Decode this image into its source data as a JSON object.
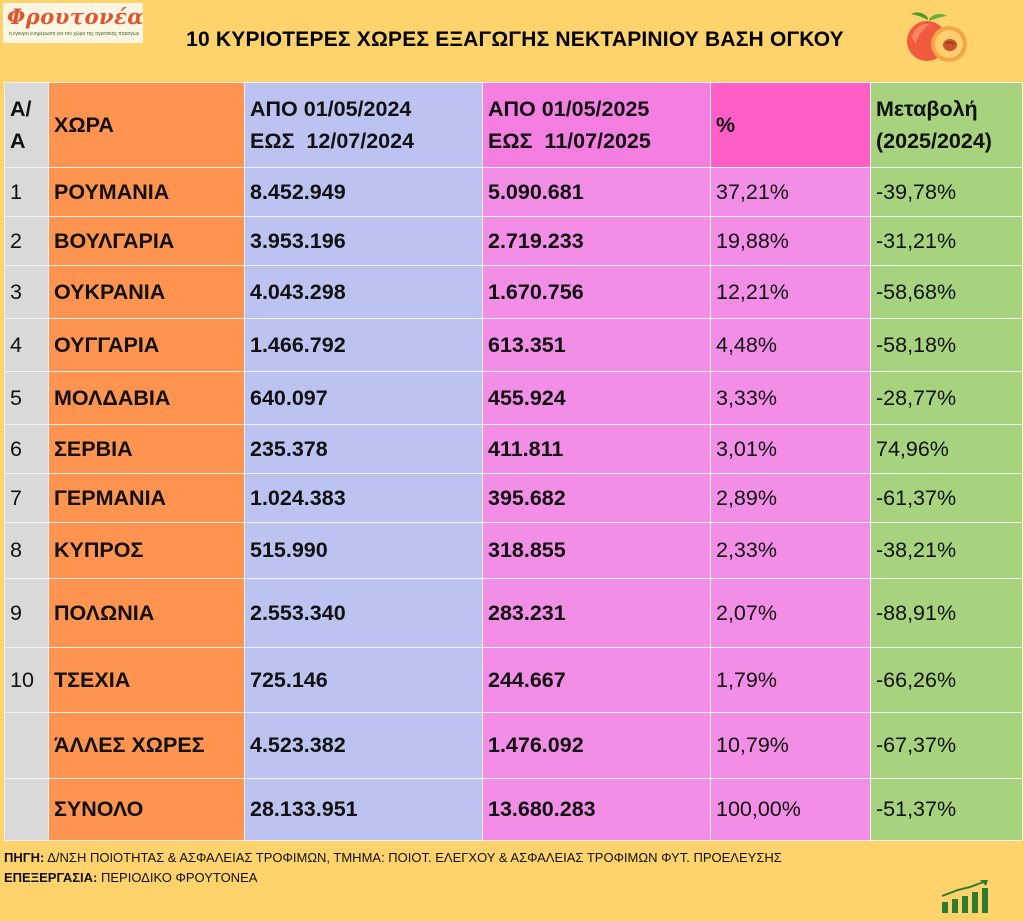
{
  "brand": {
    "logo_text": "Φρουτονέα",
    "logo_tagline": "η έγκυρη ενημέρωση για τον χώρο της αγροτικής παραγωγής"
  },
  "title": "10 ΚΥΡΙΟΤΕΡΕΣ ΧΩΡΕΣ ΕΞΑΓΩΓΗΣ ΝΕΚΤΑΡΙΝΙΟΥ ΒΑΣΗ ΟΓΚΟΥ",
  "table": {
    "headers": {
      "num": [
        "Α/",
        "Α"
      ],
      "country": "ΧΩΡΑ",
      "period_2024": [
        "ΑΠΟ 01/05/2024",
        "ΕΩΣ  12/07/2024"
      ],
      "period_2025": [
        "ΑΠΟ 01/05/2025",
        "ΕΩΣ  11/07/2025"
      ],
      "pct": "%",
      "change": [
        "Μεταβολή",
        "(2025/2024)"
      ]
    },
    "rows": [
      {
        "num": "1",
        "country": "ΡΟΥΜΑΝΙΑ",
        "v2024": "8.452.949",
        "v2025": "5.090.681",
        "pct": "37,21%",
        "change": "-39,78%"
      },
      {
        "num": "2",
        "country": "ΒΟΥΛΓΑΡΙΑ",
        "v2024": "3.953.196",
        "v2025": "2.719.233",
        "pct": "19,88%",
        "change": "-31,21%"
      },
      {
        "num": "3",
        "country": "ΟΥΚΡΑΝΙΑ",
        "v2024": "4.043.298",
        "v2025": "1.670.756",
        "pct": "12,21%",
        "change": "-58,68%"
      },
      {
        "num": "4",
        "country": "ΟΥΓΓΑΡΙΑ",
        "v2024": "1.466.792",
        "v2025": "613.351",
        "pct": "4,48%",
        "change": "-58,18%"
      },
      {
        "num": "5",
        "country": "ΜΟΛΔΑΒΙΑ",
        "v2024": "640.097",
        "v2025": "455.924",
        "pct": "3,33%",
        "change": "-28,77%"
      },
      {
        "num": "6",
        "country": "ΣΕΡΒΙΑ",
        "v2024": "235.378",
        "v2025": "411.811",
        "pct": "3,01%",
        "change": "74,96%"
      },
      {
        "num": "7",
        "country": "ΓΕΡΜΑΝΙΑ",
        "v2024": "1.024.383",
        "v2025": "395.682",
        "pct": "2,89%",
        "change": "-61,37%"
      },
      {
        "num": "8",
        "country": "ΚΥΠΡΟΣ",
        "v2024": "515.990",
        "v2025": "318.855",
        "pct": "2,33%",
        "change": "-38,21%"
      },
      {
        "num": "9",
        "country": "ΠΟΛΩΝΙΑ",
        "v2024": "2.553.340",
        "v2025": "283.231",
        "pct": "2,07%",
        "change": "-88,91%"
      },
      {
        "num": "10",
        "country": "ΤΣΕΧΙΑ",
        "v2024": "725.146",
        "v2025": "244.667",
        "pct": "1,79%",
        "change": "-66,26%"
      },
      {
        "num": "",
        "country": "ΆΛΛΕΣ ΧΩΡΕΣ",
        "v2024": "4.523.382",
        "v2025": "1.476.092",
        "pct": "10,79%",
        "change": "-67,37%"
      },
      {
        "num": "",
        "country": "ΣΥΝΟΛΟ",
        "v2024": "28.133.951",
        "v2025": "13.680.283",
        "pct": "100,00%",
        "change": "-51,37%"
      }
    ]
  },
  "footer": {
    "source_label": "ΠΗΓΗ:",
    "source_text": "Δ/ΝΣΗ ΠΟΙΟΤΗΤΑΣ & ΑΣΦΑΛΕΙΑΣ ΤΡΟΦΙΜΩΝ, ΤΜΗΜΑ: ΠΟΙΟΤ. ΕΛΕΓΧΟΥ & ΑΣΦΑΛΕΙΑΣ ΤΡΟΦΙΜΩΝ ΦΥΤ. ΠΡΟΕΛΕΥΣΗΣ",
    "processing_label": "ΕΠΕΞΕΡΓΑΣΙΑ:",
    "processing_text": "ΠΕΡΙΟΔΙΚΟ ΦΡΟΥΤΟΝΕΑ"
  },
  "icons": {
    "peach": "peach-icon",
    "growth_chart": "growth-chart-icon"
  },
  "colors": {
    "background": "#ffd36b",
    "number_column": "#d9d9d9",
    "country_column": "#ff9450",
    "period_2024_column": "#bdc3f1",
    "period_2025_column": "#f28ee6",
    "pct_header": "#ff5ec6",
    "change_column": "#a7d37f",
    "logo_text": "#e0552c"
  }
}
